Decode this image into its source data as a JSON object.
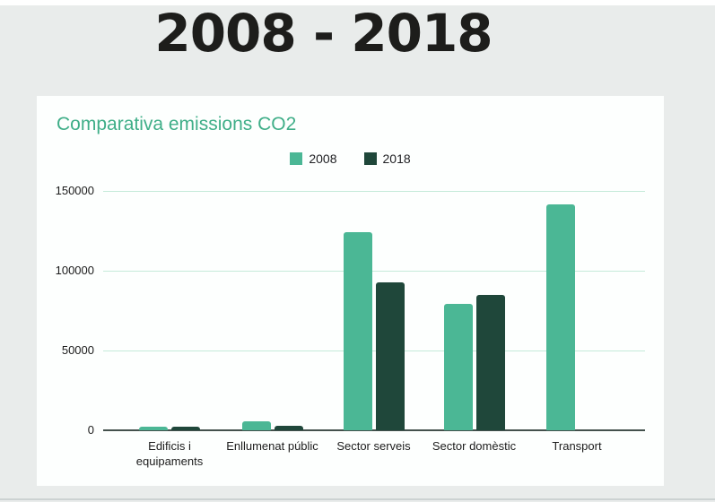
{
  "page": {
    "title": "2008 - 2018",
    "background_color": "#e9eceb",
    "card_color": "#fdfffe",
    "title_color": "#1d1d1b"
  },
  "chart_data": {
    "type": "bar",
    "title": "Comparativa emissions CO2",
    "title_color": "#3fae88",
    "categories": [
      "Edificis i equipaments",
      "Enllumenat públic",
      "Sector serveis",
      "Sector domèstic",
      "Transport"
    ],
    "series": [
      {
        "name": "2008",
        "color": "#4bb795",
        "values": [
          2400,
          5800,
          124000,
          79000,
          141500
        ]
      },
      {
        "name": "2018",
        "color": "#1f473a",
        "values": [
          2100,
          3000,
          92500,
          85000,
          null
        ]
      }
    ],
    "xlabel": "",
    "ylabel": "",
    "ylim": [
      0,
      150000
    ],
    "yticks": [
      0,
      50000,
      100000,
      150000
    ],
    "grid": true,
    "gridline_color": "#c5ead9",
    "axis_line_color": "#44514d",
    "legend_position": "top-center",
    "legend_text_color": "#202124"
  }
}
